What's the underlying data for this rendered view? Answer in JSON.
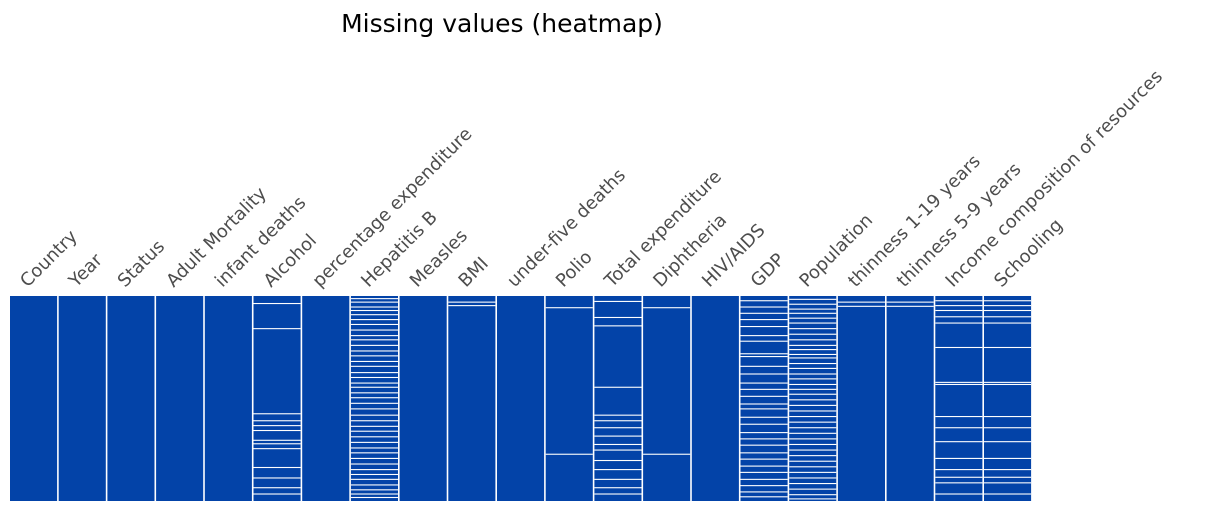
{
  "chart_data": {
    "type": "heatmap",
    "title": "Missing values (heatmap)",
    "colors": {
      "present": "#0343a8",
      "missing": "#ffffff",
      "background": "#ffffff"
    },
    "grid": false,
    "legend": "none",
    "n_rows": 2938,
    "columns": [
      {
        "name": "Country",
        "missing_rows": []
      },
      {
        "name": "Year",
        "missing_rows": []
      },
      {
        "name": "Status",
        "missing_rows": []
      },
      {
        "name": "Adult Mortality",
        "missing_rows": []
      },
      {
        "name": "infant deaths",
        "missing_rows": []
      },
      {
        "name": "Alcohol",
        "missing_rows": [
          100,
          460,
          1680,
          1780,
          1850,
          1920,
          2060,
          2110,
          2180,
          2450,
          2600,
          2740,
          2830
        ]
      },
      {
        "name": "percentage expenditure",
        "missing_rows": []
      },
      {
        "name": "Hepatitis B",
        "missing_rows": [
          30,
          80,
          150,
          200,
          260,
          330,
          400,
          480,
          560,
          620,
          700,
          780,
          850,
          930,
          1000,
          1090,
          1160,
          1240,
          1300,
          1380,
          1450,
          1530,
          1610,
          1700,
          1780,
          1860,
          1930,
          2010,
          2090,
          2170,
          2240,
          2320,
          2400,
          2480,
          2550,
          2620,
          2700,
          2770,
          2830,
          2880
        ]
      },
      {
        "name": "Measles",
        "missing_rows": []
      },
      {
        "name": "BMI",
        "missing_rows": [
          80,
          130
        ]
      },
      {
        "name": "under-five deaths",
        "missing_rows": []
      },
      {
        "name": "Polio",
        "missing_rows": [
          160,
          2260
        ]
      },
      {
        "name": "Total expenditure",
        "missing_rows": [
          70,
          300,
          420,
          1300,
          1700,
          1780,
          1880,
          2000,
          2120,
          2200,
          2350,
          2480,
          2620,
          2740,
          2830
        ]
      },
      {
        "name": "Diphtheria",
        "missing_rows": [
          160,
          2260
        ]
      },
      {
        "name": "HIV/AIDS",
        "missing_rows": []
      },
      {
        "name": "GDP",
        "missing_rows": [
          60,
          150,
          240,
          330,
          430,
          560,
          640,
          820,
          860,
          1000,
          1110,
          1240,
          1330,
          1430,
          1540,
          1610,
          1730,
          1830,
          1950,
          2040,
          2130,
          2240,
          2330,
          2430,
          2520,
          2620,
          2710,
          2800,
          2870
        ]
      },
      {
        "name": "Population",
        "missing_rows": [
          40,
          110,
          180,
          240,
          310,
          380,
          460,
          540,
          620,
          700,
          760,
          830,
          880,
          960,
          1030,
          1110,
          1180,
          1260,
          1330,
          1400,
          1480,
          1560,
          1640,
          1720,
          1800,
          1880,
          1960,
          2040,
          2120,
          2200,
          2280,
          2360,
          2440,
          2520,
          2600,
          2680,
          2760,
          2840,
          2900
        ]
      },
      {
        "name": "thinness  1-19 years",
        "missing_rows": [
          80,
          140
        ]
      },
      {
        "name": "thinness 5-9 years",
        "missing_rows": [
          80,
          140
        ]
      },
      {
        "name": "Income composition of resources",
        "missing_rows": [
          60,
          130,
          200,
          290,
          380,
          730,
          1230,
          1260,
          1720,
          1880,
          2080,
          2320,
          2480,
          2590,
          2670,
          2830
        ]
      },
      {
        "name": "Schooling",
        "missing_rows": [
          60,
          130,
          200,
          290,
          380,
          730,
          1230,
          1260,
          1720,
          1880,
          2080,
          2320,
          2480,
          2590,
          2670,
          2830
        ]
      }
    ]
  }
}
